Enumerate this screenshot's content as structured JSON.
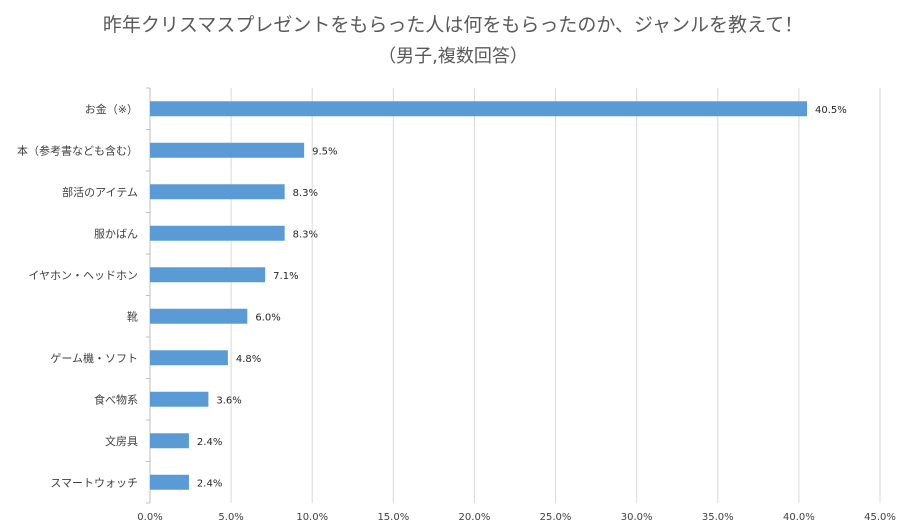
{
  "chart_data": {
    "type": "bar",
    "orientation": "horizontal",
    "title": "昨年クリスマスプレゼントをもらった人は何をもらったのか、ジャンルを教えて！",
    "subtitle": "（男子,複数回答）",
    "categories": [
      "お金（※）",
      "本（参考書なども含む）",
      "部活のアイテム",
      "服かばん",
      "イヤホン・ヘッドホン",
      "靴",
      "ゲーム機・ソフト",
      "食べ物系",
      "文房具",
      "スマートウォッチ"
    ],
    "values": [
      40.5,
      9.5,
      8.3,
      8.3,
      7.1,
      6.0,
      4.8,
      3.6,
      2.4,
      2.4
    ],
    "data_labels": [
      "40.5%",
      "9.5%",
      "8.3%",
      "8.3%",
      "7.1%",
      "6.0%",
      "4.8%",
      "3.6%",
      "2.4%",
      "2.4%"
    ],
    "x_ticks": [
      0,
      5,
      10,
      15,
      20,
      25,
      30,
      35,
      40,
      45
    ],
    "x_tick_labels": [
      "0.0%",
      "5.0%",
      "10.0%",
      "15.0%",
      "20.0%",
      "25.0%",
      "30.0%",
      "35.0%",
      "40.0%",
      "45.0%"
    ],
    "xlim": [
      0,
      45
    ],
    "xlabel": "",
    "ylabel": "",
    "grid": "vertical",
    "legend": "none",
    "colors": {
      "bar": "#5B9BD5",
      "grid": "#D9D9D9",
      "axis": "#BFBFBF",
      "title": "#595959",
      "text": "#404040"
    }
  }
}
